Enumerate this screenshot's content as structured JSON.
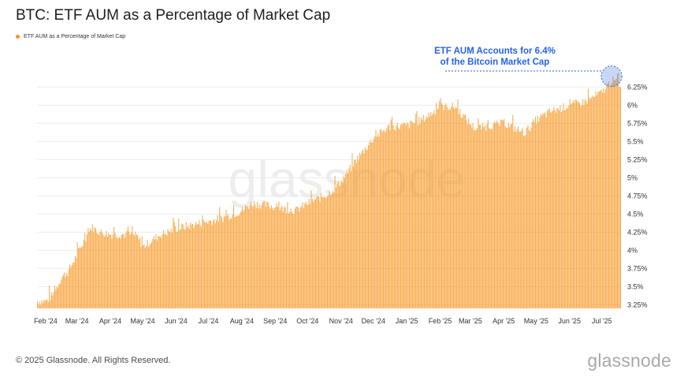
{
  "title": "BTC: ETF AUM as a Percentage of Market Cap",
  "footer": "© 2025 Glassnode. All Rights Reserved.",
  "brand": "glassnode",
  "watermark": "glassnode",
  "colors": {
    "bar": "#f7931a",
    "callout": "#2563eb",
    "grid": "#ececec",
    "axis_text": "#333333"
  },
  "chart_data": {
    "type": "bar",
    "series": [
      {
        "name": "ETF AUM as a Percentage of Market Cap",
        "color": "#f7931a"
      }
    ],
    "x_range": [
      "2024-01-24",
      "2025-07-18"
    ],
    "y_axis": {
      "ylim": [
        3.2,
        6.45
      ],
      "ticks": [
        "3.25%",
        "3.5%",
        "3.75%",
        "4%",
        "4.25%",
        "4.5%",
        "4.75%",
        "5%",
        "5.25%",
        "5.5%",
        "5.75%",
        "6%",
        "6.25%"
      ],
      "position": "right"
    },
    "x_axis": {
      "ticks": [
        {
          "date": "2024-02-01",
          "label": "Feb '24"
        },
        {
          "date": "2024-03-01",
          "label": "Mar '24"
        },
        {
          "date": "2024-04-01",
          "label": "Apr '24"
        },
        {
          "date": "2024-05-01",
          "label": "May '24"
        },
        {
          "date": "2024-06-01",
          "label": "Jun '24"
        },
        {
          "date": "2024-07-01",
          "label": "Jul '24"
        },
        {
          "date": "2024-08-01",
          "label": "Aug '24"
        },
        {
          "date": "2024-09-01",
          "label": "Sep '24"
        },
        {
          "date": "2024-10-01",
          "label": "Oct '24"
        },
        {
          "date": "2024-11-01",
          "label": "Nov '24"
        },
        {
          "date": "2024-12-01",
          "label": "Dec '24"
        },
        {
          "date": "2025-01-01",
          "label": "Jan '25"
        },
        {
          "date": "2025-02-01",
          "label": "Feb '25"
        },
        {
          "date": "2025-03-01",
          "label": "Mar '25"
        },
        {
          "date": "2025-04-01",
          "label": "Apr '25"
        },
        {
          "date": "2025-05-01",
          "label": "May '25"
        },
        {
          "date": "2025-06-01",
          "label": "Jun '25"
        },
        {
          "date": "2025-07-01",
          "label": "Jul '25"
        }
      ]
    },
    "trend_points": [
      [
        "2024-01-24",
        3.3
      ],
      [
        "2024-02-01",
        3.3
      ],
      [
        "2024-02-08",
        3.4
      ],
      [
        "2024-02-15",
        3.62
      ],
      [
        "2024-02-22",
        3.72
      ],
      [
        "2024-03-01",
        3.95
      ],
      [
        "2024-03-08",
        4.15
      ],
      [
        "2024-03-14",
        4.32
      ],
      [
        "2024-03-22",
        4.25
      ],
      [
        "2024-04-01",
        4.22
      ],
      [
        "2024-04-15",
        4.22
      ],
      [
        "2024-04-25",
        4.2
      ],
      [
        "2024-05-01",
        4.05
      ],
      [
        "2024-05-15",
        4.2
      ],
      [
        "2024-06-01",
        4.3
      ],
      [
        "2024-06-15",
        4.35
      ],
      [
        "2024-07-01",
        4.4
      ],
      [
        "2024-07-15",
        4.45
      ],
      [
        "2024-08-01",
        4.55
      ],
      [
        "2024-08-10",
        4.65
      ],
      [
        "2024-08-25",
        4.62
      ],
      [
        "2024-09-05",
        4.58
      ],
      [
        "2024-09-20",
        4.55
      ],
      [
        "2024-10-01",
        4.65
      ],
      [
        "2024-10-20",
        4.78
      ],
      [
        "2024-11-01",
        4.95
      ],
      [
        "2024-11-15",
        5.25
      ],
      [
        "2024-12-01",
        5.55
      ],
      [
        "2024-12-15",
        5.7
      ],
      [
        "2025-01-01",
        5.72
      ],
      [
        "2025-01-15",
        5.8
      ],
      [
        "2025-02-01",
        5.98
      ],
      [
        "2025-02-15",
        5.98
      ],
      [
        "2025-02-25",
        5.8
      ],
      [
        "2025-03-05",
        5.68
      ],
      [
        "2025-03-20",
        5.72
      ],
      [
        "2025-04-01",
        5.75
      ],
      [
        "2025-04-20",
        5.62
      ],
      [
        "2025-05-01",
        5.8
      ],
      [
        "2025-05-15",
        5.92
      ],
      [
        "2025-06-01",
        6.0
      ],
      [
        "2025-06-15",
        6.05
      ],
      [
        "2025-07-01",
        6.18
      ],
      [
        "2025-07-10",
        6.35
      ],
      [
        "2025-07-18",
        6.28
      ]
    ],
    "annotations": [
      {
        "text_line1": "ETF AUM Accounts for 6.4%",
        "text_line2": "of the Bitcoin Market Cap",
        "date": "2025-07-10",
        "value": 6.4
      }
    ],
    "grid": true,
    "legend_position": "top-left"
  }
}
